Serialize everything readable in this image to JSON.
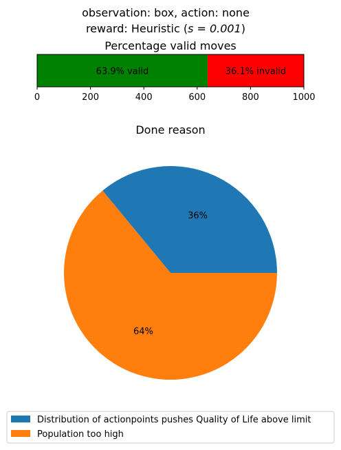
{
  "header": {
    "line1": "observation: box, action: none",
    "line2_prefix": "reward: Heuristic (",
    "line2_math": "s = 0.001",
    "line2_suffix": ")"
  },
  "chart_data": [
    {
      "type": "bar",
      "orientation": "horizontal",
      "stacked": true,
      "title": "Percentage valid moves",
      "xlim": [
        0,
        1000
      ],
      "xticks": [
        "0",
        "200",
        "400",
        "600",
        "800",
        "1000"
      ],
      "series": [
        {
          "value": 639,
          "label": "63.9% valid",
          "color": "#008000"
        },
        {
          "value": 361,
          "label": "36.1% invalid",
          "color": "#ff0000"
        }
      ]
    },
    {
      "type": "pie",
      "title": "Done reason",
      "slices": [
        {
          "name": "Distribution of actionpoints pushes Quality of Life above limit",
          "value": 36,
          "label": "36%",
          "color": "#1f77b4"
        },
        {
          "name": "Population too high",
          "value": 64,
          "label": "64%",
          "color": "#ff7f0e"
        }
      ],
      "legend_position": "bottom"
    }
  ]
}
